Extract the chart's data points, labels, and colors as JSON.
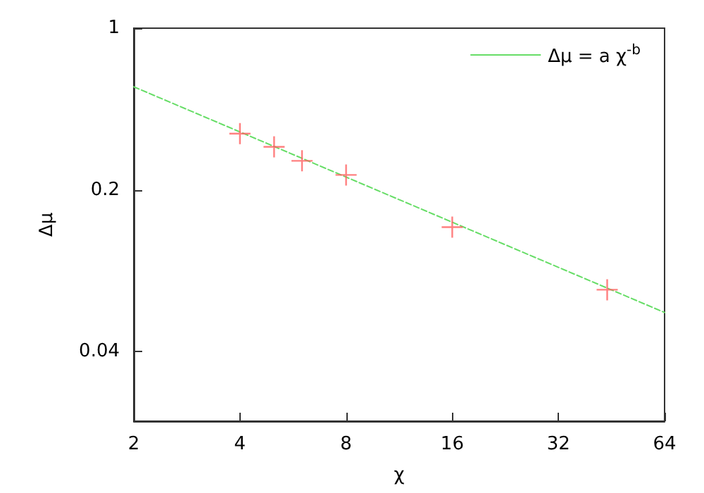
{
  "chart_data": {
    "type": "scatter",
    "xlabel": "χ",
    "ylabel": "Δμ",
    "log": "xy",
    "marker": "cross",
    "grid": false,
    "legend": "top right",
    "xlim": [
      2,
      64
    ],
    "xticks": [
      2,
      4,
      8,
      16,
      32,
      64
    ],
    "ylim": [
      0.02,
      1
    ],
    "yticks": [
      0.04,
      0.2,
      1
    ],
    "series": [
      {
        "color": "#ff6060",
        "x": [
          4,
          5,
          6,
          8,
          16,
          44
        ],
        "values": [
          0.35,
          0.307,
          0.267,
          0.232,
          0.138,
          0.074
        ]
      },
      {
        "type": "line",
        "name": "Δμ = a χ$^{-b}$",
        "color": "#66dd66",
        "line_style": "dashed",
        "marker": "none",
        "x": [
          2,
          64
        ],
        "values": [
          0.558,
          0.059
        ]
      }
    ]
  }
}
